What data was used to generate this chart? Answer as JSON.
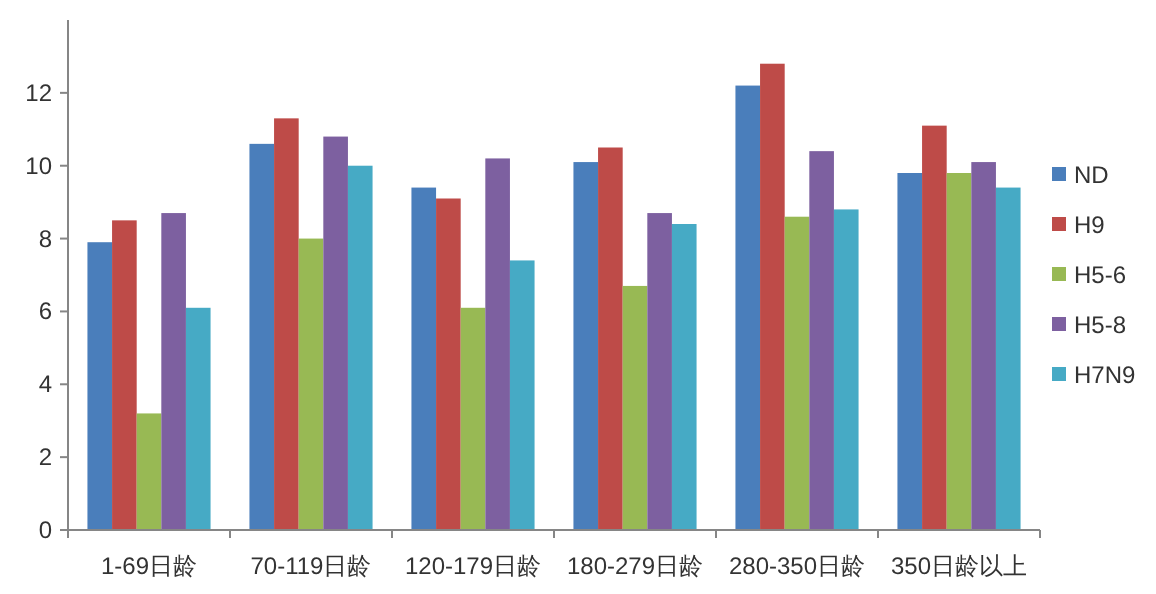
{
  "chart_data": {
    "type": "bar",
    "categories": [
      "1-69日龄",
      "70-119日龄",
      "120-179日龄",
      "180-279日龄",
      "280-350日龄",
      "350日龄以上"
    ],
    "series": [
      {
        "name": "ND",
        "color": "#4a7ebb",
        "values": [
          7.9,
          10.6,
          9.4,
          10.1,
          12.2,
          9.8
        ]
      },
      {
        "name": "H9",
        "color": "#be4b48",
        "values": [
          8.5,
          11.3,
          9.1,
          10.5,
          12.8,
          11.1
        ]
      },
      {
        "name": "H5-6",
        "color": "#98b954",
        "values": [
          3.2,
          8.0,
          6.1,
          6.7,
          8.6,
          9.8
        ]
      },
      {
        "name": "H5-8",
        "color": "#7d60a0",
        "values": [
          8.7,
          10.8,
          10.2,
          8.7,
          10.4,
          10.1
        ]
      },
      {
        "name": "H7N9",
        "color": "#46aac5",
        "values": [
          6.1,
          10.0,
          7.4,
          8.4,
          8.8,
          9.4
        ]
      }
    ],
    "ylim": [
      0,
      14
    ],
    "yticks": [
      0,
      2,
      4,
      6,
      8,
      10,
      12
    ],
    "grid": false,
    "legend": "right"
  }
}
